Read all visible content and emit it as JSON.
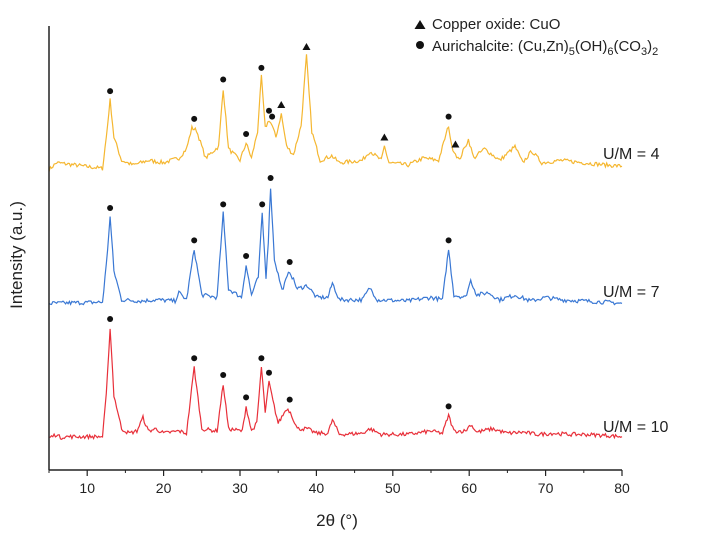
{
  "chart_data": {
    "type": "line",
    "xlabel": "2θ (°)",
    "ylabel": "Intensity (a.u.)",
    "xlim": [
      5,
      80
    ],
    "xticks": [
      10,
      20,
      30,
      40,
      50,
      60,
      70,
      80
    ],
    "legend": {
      "placement": "top-right",
      "entries": [
        {
          "marker": "triangle",
          "text": "Copper oxide: CuO"
        },
        {
          "marker": "circle",
          "text": "Aurichalcite: (Cu,Zn)5(OH)6(CO3)2"
        }
      ]
    },
    "series": [
      {
        "name": "U/M = 4",
        "color": "#f5b731",
        "x": [
          5,
          6,
          12,
          12.5,
          13,
          13.5,
          14.5,
          16,
          18,
          20,
          22,
          23,
          23.7,
          24.3,
          25.5,
          27.2,
          27.8,
          28.5,
          30,
          30.8,
          31.5,
          32.3,
          32.8,
          33.3,
          33.8,
          34.2,
          34.7,
          35.4,
          36.1,
          37,
          38,
          38.7,
          39.4,
          40.5,
          42,
          43,
          46,
          47,
          48.5,
          48.9,
          49.5,
          52,
          54,
          56,
          57.3,
          57.7,
          58.2,
          58.7,
          59.2,
          59.9,
          60.6,
          62,
          64,
          66,
          67,
          68.2,
          69.5,
          72,
          75,
          78,
          80
        ],
        "y": [
          0.02,
          0.08,
          0.03,
          0.3,
          0.62,
          0.3,
          0.1,
          0.06,
          0.1,
          0.08,
          0.12,
          0.2,
          0.38,
          0.36,
          0.12,
          0.22,
          0.72,
          0.2,
          0.1,
          0.25,
          0.12,
          0.35,
          0.82,
          0.38,
          0.45,
          0.4,
          0.3,
          0.5,
          0.22,
          0.15,
          0.4,
          1.0,
          0.35,
          0.1,
          0.14,
          0.08,
          0.1,
          0.18,
          0.1,
          0.22,
          0.08,
          0.06,
          0.12,
          0.1,
          0.4,
          0.22,
          0.16,
          0.1,
          0.18,
          0.28,
          0.12,
          0.2,
          0.1,
          0.22,
          0.08,
          0.18,
          0.08,
          0.1,
          0.08,
          0.06,
          0.05
        ],
        "annotations": [
          {
            "marker": "circle",
            "x": 13,
            "y": 0.62
          },
          {
            "marker": "circle",
            "x": 24,
            "y": 0.38
          },
          {
            "marker": "circle",
            "x": 27.8,
            "y": 0.72
          },
          {
            "marker": "circle",
            "x": 30.8,
            "y": 0.25
          },
          {
            "marker": "circle",
            "x": 32.8,
            "y": 0.82
          },
          {
            "marker": "circle",
            "x": 33.8,
            "y": 0.45
          },
          {
            "marker": "circle",
            "x": 34.2,
            "y": 0.4
          },
          {
            "marker": "triangle",
            "x": 35.4,
            "y": 0.5
          },
          {
            "marker": "triangle",
            "x": 38.7,
            "y": 1.0
          },
          {
            "marker": "triangle",
            "x": 48.9,
            "y": 0.22
          },
          {
            "marker": "circle",
            "x": 57.3,
            "y": 0.4
          },
          {
            "marker": "triangle",
            "x": 58.2,
            "y": 0.16
          }
        ]
      },
      {
        "name": "U/M = 7",
        "color": "#3a78d4",
        "x": [
          5,
          12,
          12.5,
          13,
          13.5,
          14.5,
          17,
          19,
          21.5,
          22,
          23,
          24,
          25,
          27,
          27.8,
          28.5,
          30.2,
          30.8,
          31.5,
          32.4,
          32.9,
          33.4,
          33.7,
          34,
          34.5,
          35.5,
          36.5,
          37.5,
          38.8,
          40,
          41.5,
          42.1,
          43,
          46,
          47,
          48,
          52,
          55,
          56.5,
          57.3,
          58,
          59.5,
          60.2,
          61,
          62.5,
          64,
          66,
          68,
          70,
          72,
          75,
          78,
          80
        ],
        "y": [
          0.03,
          0.04,
          0.35,
          0.75,
          0.3,
          0.06,
          0.05,
          0.06,
          0.05,
          0.12,
          0.06,
          0.48,
          0.1,
          0.08,
          0.78,
          0.15,
          0.08,
          0.35,
          0.1,
          0.25,
          0.78,
          0.25,
          0.55,
          1.0,
          0.4,
          0.14,
          0.3,
          0.15,
          0.18,
          0.08,
          0.08,
          0.2,
          0.06,
          0.06,
          0.16,
          0.06,
          0.05,
          0.08,
          0.06,
          0.48,
          0.1,
          0.08,
          0.22,
          0.1,
          0.12,
          0.06,
          0.1,
          0.05,
          0.08,
          0.06,
          0.05,
          0.04,
          0.03
        ],
        "annotations": [
          {
            "marker": "circle",
            "x": 13,
            "y": 0.75
          },
          {
            "marker": "circle",
            "x": 24,
            "y": 0.48
          },
          {
            "marker": "circle",
            "x": 27.8,
            "y": 0.78
          },
          {
            "marker": "circle",
            "x": 30.8,
            "y": 0.35
          },
          {
            "marker": "circle",
            "x": 32.9,
            "y": 0.78
          },
          {
            "marker": "circle",
            "x": 34,
            "y": 1.0
          },
          {
            "marker": "circle",
            "x": 36.5,
            "y": 0.3
          },
          {
            "marker": "circle",
            "x": 57.3,
            "y": 0.48
          }
        ]
      },
      {
        "name": "U/M = 10",
        "color": "#e8303a",
        "x": [
          5,
          6,
          6.5,
          7,
          12,
          12.5,
          13,
          13.5,
          14.5,
          15.5,
          16.5,
          17.3,
          18,
          19,
          20,
          22,
          23,
          24,
          25,
          27,
          27.8,
          28.5,
          30.3,
          30.8,
          31.5,
          32.2,
          32.8,
          33.3,
          33.8,
          34.3,
          35,
          36.1,
          36.6,
          37.5,
          38.8,
          40,
          41.5,
          42.1,
          43,
          46,
          47,
          48.5,
          52,
          55,
          56.5,
          57.3,
          58,
          59.5,
          60.2,
          61,
          63,
          65,
          67,
          69,
          71,
          73,
          75,
          78,
          80
        ],
        "y": [
          0.02,
          0.05,
          0.02,
          0.03,
          0.03,
          0.4,
          1.0,
          0.4,
          0.1,
          0.06,
          0.08,
          0.2,
          0.08,
          0.1,
          0.06,
          0.08,
          0.06,
          0.65,
          0.1,
          0.08,
          0.5,
          0.1,
          0.08,
          0.3,
          0.08,
          0.15,
          0.65,
          0.25,
          0.52,
          0.35,
          0.15,
          0.28,
          0.25,
          0.1,
          0.1,
          0.06,
          0.06,
          0.18,
          0.05,
          0.06,
          0.1,
          0.05,
          0.05,
          0.08,
          0.06,
          0.22,
          0.08,
          0.08,
          0.14,
          0.07,
          0.1,
          0.06,
          0.07,
          0.05,
          0.06,
          0.05,
          0.05,
          0.04,
          0.03
        ],
        "annotations": [
          {
            "marker": "circle",
            "x": 13,
            "y": 1.0
          },
          {
            "marker": "circle",
            "x": 24,
            "y": 0.65
          },
          {
            "marker": "circle",
            "x": 27.8,
            "y": 0.5
          },
          {
            "marker": "circle",
            "x": 30.8,
            "y": 0.3
          },
          {
            "marker": "circle",
            "x": 32.8,
            "y": 0.65
          },
          {
            "marker": "circle",
            "x": 33.8,
            "y": 0.52
          },
          {
            "marker": "circle",
            "x": 36.5,
            "y": 0.28
          },
          {
            "marker": "circle",
            "x": 57.3,
            "y": 0.22
          }
        ]
      }
    ]
  }
}
